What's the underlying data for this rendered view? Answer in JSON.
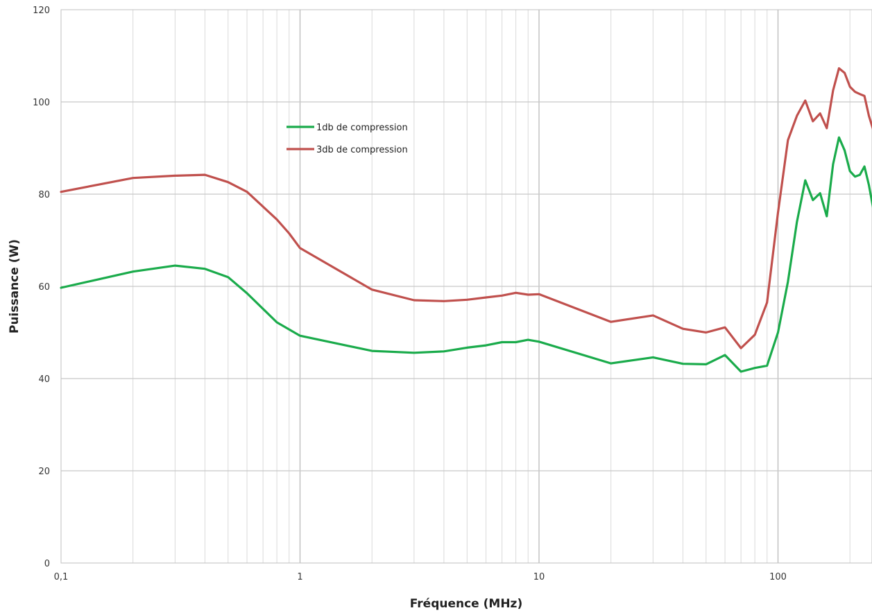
{
  "chart_data": {
    "type": "line",
    "title": "",
    "xlabel": "Fréquence (MHz)",
    "ylabel": "Puissance (W)",
    "x_scale": "log",
    "xlim": [
      0.1,
      260
    ],
    "ylim": [
      0,
      120
    ],
    "grid": true,
    "legend": "upper-left-inside",
    "x_ticks": [
      {
        "value": 0.1,
        "label": "0,1"
      },
      {
        "value": 1,
        "label": "1"
      },
      {
        "value": 10,
        "label": "10"
      },
      {
        "value": 100,
        "label": "100"
      }
    ],
    "y_ticks": [
      {
        "value": 0,
        "label": "0"
      },
      {
        "value": 20,
        "label": "20"
      },
      {
        "value": 40,
        "label": "40"
      },
      {
        "value": 60,
        "label": "60"
      },
      {
        "value": 80,
        "label": "80"
      },
      {
        "value": 100,
        "label": "100"
      },
      {
        "value": 120,
        "label": "120"
      }
    ],
    "series": [
      {
        "name": "1db de compression",
        "color": "#1aab4b",
        "points": [
          [
            0.1,
            59.7
          ],
          [
            0.2,
            63.2
          ],
          [
            0.3,
            64.5
          ],
          [
            0.4,
            63.8
          ],
          [
            0.5,
            62.0
          ],
          [
            0.6,
            58.5
          ],
          [
            0.8,
            52.2
          ],
          [
            1,
            49.3
          ],
          [
            2,
            46.0
          ],
          [
            3,
            45.6
          ],
          [
            4,
            45.9
          ],
          [
            5,
            46.7
          ],
          [
            6,
            47.2
          ],
          [
            7,
            47.9
          ],
          [
            8,
            47.9
          ],
          [
            9,
            48.4
          ],
          [
            10,
            48.0
          ],
          [
            20,
            43.3
          ],
          [
            30,
            44.6
          ],
          [
            40,
            43.2
          ],
          [
            50,
            43.1
          ],
          [
            60,
            45.1
          ],
          [
            70,
            41.5
          ],
          [
            80,
            42.3
          ],
          [
            90,
            42.8
          ],
          [
            100,
            50.0
          ],
          [
            110,
            61.0
          ],
          [
            120,
            74.0
          ],
          [
            130,
            83.0
          ],
          [
            140,
            78.7
          ],
          [
            150,
            80.2
          ],
          [
            160,
            75.2
          ],
          [
            170,
            86.5
          ],
          [
            180,
            92.3
          ],
          [
            190,
            89.5
          ],
          [
            200,
            85.0
          ],
          [
            210,
            83.8
          ],
          [
            220,
            84.2
          ],
          [
            230,
            86.0
          ],
          [
            240,
            82.0
          ],
          [
            250,
            77.0
          ],
          [
            260,
            74.5
          ]
        ]
      },
      {
        "name": "3db de compression",
        "color": "#c0504d",
        "points": [
          [
            0.1,
            80.5
          ],
          [
            0.2,
            83.5
          ],
          [
            0.3,
            84.0
          ],
          [
            0.4,
            84.2
          ],
          [
            0.5,
            82.6
          ],
          [
            0.6,
            80.5
          ],
          [
            0.8,
            74.5
          ],
          [
            0.9,
            71.5
          ],
          [
            1,
            68.3
          ],
          [
            2,
            59.3
          ],
          [
            3,
            57.0
          ],
          [
            4,
            56.8
          ],
          [
            5,
            57.1
          ],
          [
            6,
            57.6
          ],
          [
            7,
            58.0
          ],
          [
            8,
            58.6
          ],
          [
            9,
            58.2
          ],
          [
            10,
            58.3
          ],
          [
            20,
            52.3
          ],
          [
            30,
            53.7
          ],
          [
            40,
            50.8
          ],
          [
            50,
            50.0
          ],
          [
            60,
            51.1
          ],
          [
            70,
            46.6
          ],
          [
            80,
            49.5
          ],
          [
            90,
            56.5
          ],
          [
            100,
            76.0
          ],
          [
            110,
            91.7
          ],
          [
            120,
            97.0
          ],
          [
            130,
            100.3
          ],
          [
            140,
            95.8
          ],
          [
            150,
            97.5
          ],
          [
            160,
            94.3
          ],
          [
            170,
            102.5
          ],
          [
            180,
            107.3
          ],
          [
            190,
            106.3
          ],
          [
            200,
            103.3
          ],
          [
            210,
            102.2
          ],
          [
            220,
            101.7
          ],
          [
            230,
            101.3
          ],
          [
            240,
            97.0
          ],
          [
            250,
            94.0
          ],
          [
            260,
            92.0
          ]
        ]
      }
    ]
  }
}
